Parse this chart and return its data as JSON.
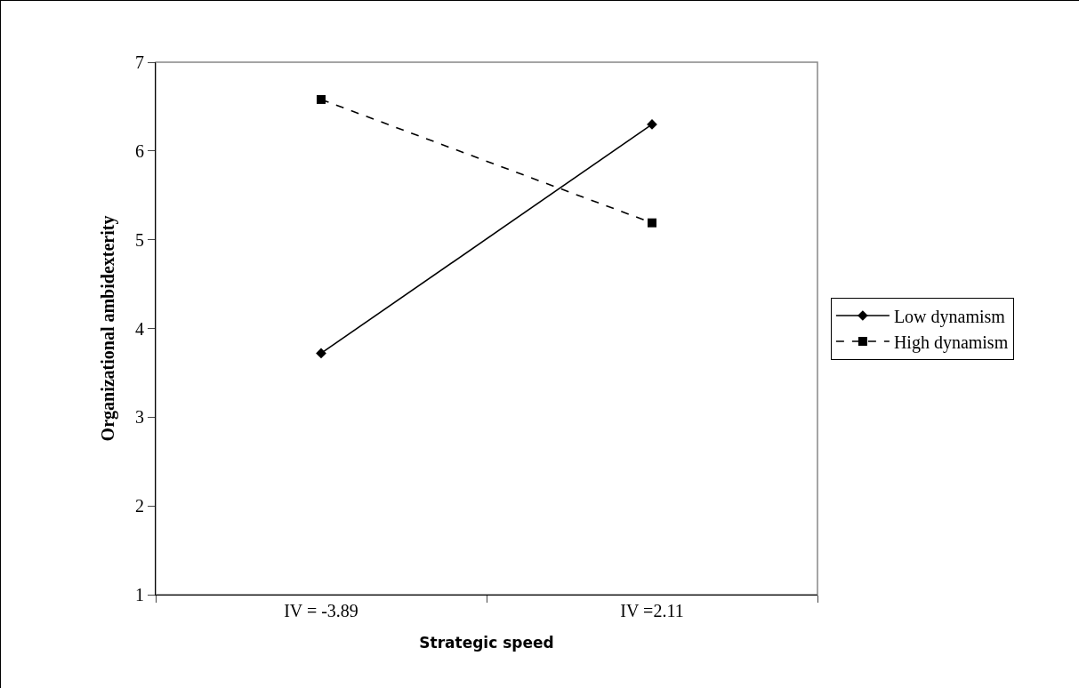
{
  "chart_data": {
    "type": "line",
    "xlabel": "Strategic speed",
    "ylabel": "Organizational ambidexterity",
    "categories": [
      "IV = -3.89",
      "IV =2.11"
    ],
    "series": [
      {
        "name": "Low dynamism",
        "color": "#000000",
        "values": [
          3.72,
          6.3
        ],
        "marker": "diamond",
        "line_style": "solid"
      },
      {
        "name": "High dynamism",
        "color": "#000000",
        "values": [
          6.58,
          5.19
        ],
        "marker": "square",
        "line_style": "dashed"
      }
    ],
    "ylim": [
      1,
      7
    ],
    "yticks": [
      1,
      2,
      3,
      4,
      5,
      6,
      7
    ],
    "grid": false,
    "legend": "right"
  }
}
